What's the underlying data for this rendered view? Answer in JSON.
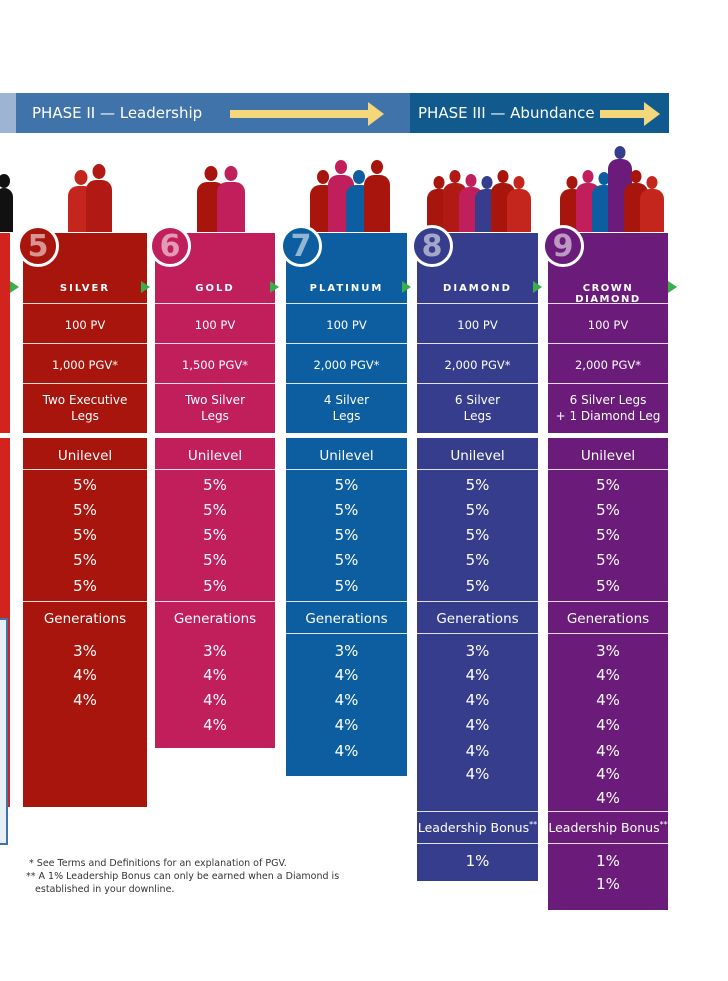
{
  "phases": {
    "phase2": {
      "label": "PHASE II — Leadership"
    },
    "phase3": {
      "label": "PHASE III — Abundance"
    }
  },
  "colors": {
    "silver": "#a8150d",
    "gold": "#c01f5c",
    "platinum": "#0c5ea0",
    "diamond": "#363d8d",
    "crown": "#6b1c7a",
    "left_partial": "#d2231e",
    "green_arrow": "#3aae49",
    "phase_arrow": "#f3d77a"
  },
  "ranks": [
    {
      "number": "5",
      "name": "SILVER",
      "pv": "100 PV",
      "pgv": "1,000 PGV*",
      "legs_line1": "Two Executive",
      "legs_line2": "Legs",
      "unilevel_header": "Unilevel",
      "unilevel": [
        "5%",
        "5%",
        "5%",
        "5%",
        "5%"
      ],
      "generations_header": "Generations",
      "generations": [
        "3%",
        "4%",
        "4%"
      ]
    },
    {
      "number": "6",
      "name": "GOLD",
      "pv": "100 PV",
      "pgv": "1,500 PGV*",
      "legs_line1": "Two Silver",
      "legs_line2": "Legs",
      "unilevel_header": "Unilevel",
      "unilevel": [
        "5%",
        "5%",
        "5%",
        "5%",
        "5%"
      ],
      "generations_header": "Generations",
      "generations": [
        "3%",
        "4%",
        "4%",
        "4%"
      ]
    },
    {
      "number": "7",
      "name": "PLATINUM",
      "pv": "100 PV",
      "pgv": "2,000 PGV*",
      "legs_line1": "4 Silver",
      "legs_line2": "Legs",
      "unilevel_header": "Unilevel",
      "unilevel": [
        "5%",
        "5%",
        "5%",
        "5%",
        "5%"
      ],
      "generations_header": "Generations",
      "generations": [
        "3%",
        "4%",
        "4%",
        "4%",
        "4%"
      ]
    },
    {
      "number": "8",
      "name": "DIAMOND",
      "pv": "100 PV",
      "pgv": "2,000 PGV*",
      "legs_line1": "6 Silver",
      "legs_line2": "Legs",
      "unilevel_header": "Unilevel",
      "unilevel": [
        "5%",
        "5%",
        "5%",
        "5%",
        "5%"
      ],
      "generations_header": "Generations",
      "generations": [
        "3%",
        "4%",
        "4%",
        "4%",
        "4%",
        "4%"
      ],
      "leadership_header": "Leadership Bonus",
      "leadership_mark": "**",
      "leadership": [
        "1%"
      ]
    },
    {
      "number": "9",
      "name": "CROWN DIAMOND",
      "pv": "100 PV",
      "pgv": "2,000 PGV*",
      "legs_line1": "6 Silver Legs",
      "legs_line2": "+ 1 Diamond Leg",
      "unilevel_header": "Unilevel",
      "unilevel": [
        "5%",
        "5%",
        "5%",
        "5%",
        "5%"
      ],
      "generations_header": "Generations",
      "generations": [
        "3%",
        "4%",
        "4%",
        "4%",
        "4%",
        "4%",
        "4%"
      ],
      "leadership_header": "Leadership Bonus",
      "leadership_mark": "**",
      "leadership": [
        "1%",
        "1%"
      ]
    }
  ],
  "footnotes": {
    "line1": " * See Terms and Definitions for an explanation of PGV.",
    "line2": "** A 1% Leadership Bonus can only be earned when a Diamond is",
    "line3": "   established in your downline."
  }
}
